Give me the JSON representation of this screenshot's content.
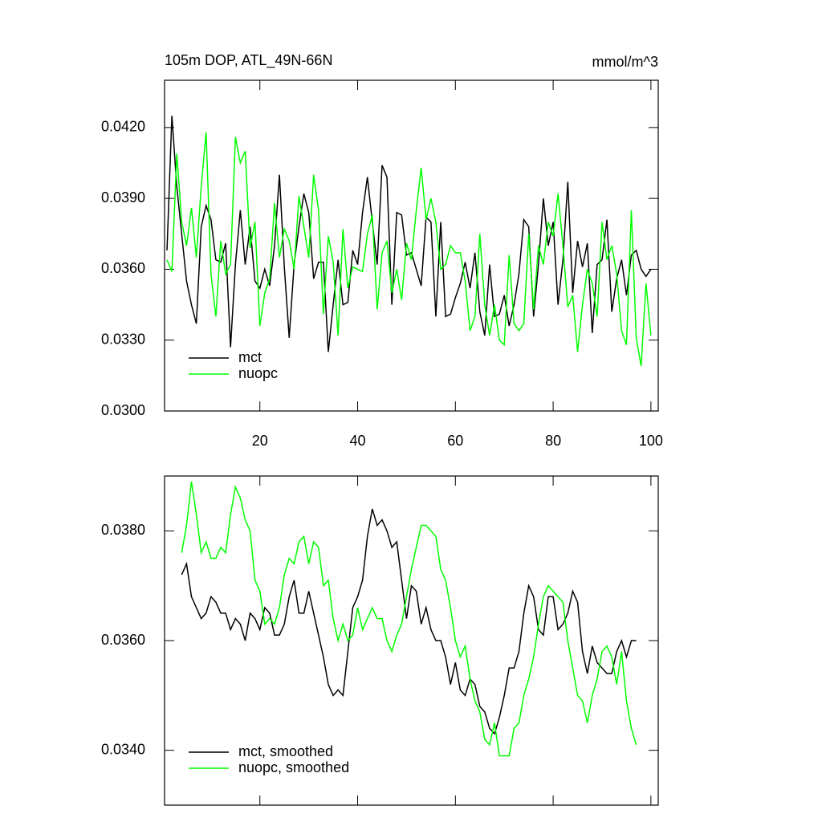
{
  "chart_data": [
    {
      "type": "line",
      "title": "105m DOP, ATL_49N-66N",
      "subtitle": "mmol/m^3",
      "x": [
        1,
        2,
        3,
        4,
        5,
        6,
        7,
        8,
        9,
        10,
        11,
        12,
        13,
        14,
        15,
        16,
        17,
        18,
        19,
        20,
        21,
        22,
        23,
        24,
        25,
        26,
        27,
        28,
        29,
        30,
        31,
        32,
        33,
        34,
        35,
        36,
        37,
        38,
        39,
        40,
        41,
        42,
        43,
        44,
        45,
        46,
        47,
        48,
        49,
        50,
        51,
        52,
        53,
        54,
        55,
        56,
        57,
        58,
        59,
        60,
        61,
        62,
        63,
        64,
        65,
        66,
        67,
        68,
        69,
        70,
        71,
        72,
        73,
        74,
        75,
        76,
        77,
        78,
        79,
        80,
        81,
        82,
        83,
        84,
        85,
        86,
        87,
        88,
        89,
        90,
        91,
        92,
        93,
        94,
        95,
        96,
        97,
        98,
        99,
        100
      ],
      "series": [
        {
          "name": "mct",
          "color": "#000000",
          "values": [
            0.0368,
            0.0425,
            0.0395,
            0.0375,
            0.0355,
            0.0345,
            0.0337,
            0.0378,
            0.0387,
            0.0381,
            0.0364,
            0.0363,
            0.0371,
            0.0327,
            0.0362,
            0.0385,
            0.0362,
            0.0378,
            0.0355,
            0.0352,
            0.036,
            0.0353,
            0.037,
            0.04,
            0.0361,
            0.0331,
            0.0362,
            0.0378,
            0.0392,
            0.0384,
            0.0356,
            0.0363,
            0.0363,
            0.0325,
            0.0345,
            0.0364,
            0.0345,
            0.0346,
            0.0368,
            0.0362,
            0.0384,
            0.0399,
            0.038,
            0.0362,
            0.0404,
            0.0399,
            0.0345,
            0.0384,
            0.0383,
            0.0366,
            0.0367,
            0.036,
            0.0353,
            0.0382,
            0.038,
            0.034,
            0.038,
            0.034,
            0.0341,
            0.0348,
            0.0354,
            0.0363,
            0.0352,
            0.0367,
            0.0342,
            0.0332,
            0.0362,
            0.034,
            0.0341,
            0.0349,
            0.0336,
            0.0345,
            0.0358,
            0.0381,
            0.0378,
            0.034,
            0.0362,
            0.039,
            0.037,
            0.038,
            0.0345,
            0.0364,
            0.0397,
            0.035,
            0.0372,
            0.0361,
            0.0371,
            0.0333,
            0.0362,
            0.0364,
            0.0381,
            0.0342,
            0.0356,
            0.0364,
            0.0349,
            0.0366,
            0.0368,
            0.036,
            0.0357,
            0.036
          ]
        },
        {
          "name": "nuopc",
          "color": "#00ff00",
          "values": [
            0.0364,
            0.0359,
            0.0409,
            0.038,
            0.037,
            0.0386,
            0.0365,
            0.0395,
            0.0418,
            0.0358,
            0.034,
            0.0372,
            0.0358,
            0.0362,
            0.0416,
            0.0405,
            0.041,
            0.0369,
            0.038,
            0.0336,
            0.035,
            0.0356,
            0.0388,
            0.0365,
            0.0377,
            0.0372,
            0.036,
            0.0391,
            0.0378,
            0.0365,
            0.04,
            0.0385,
            0.0341,
            0.0374,
            0.0363,
            0.0332,
            0.0377,
            0.0352,
            0.0361,
            0.036,
            0.0359,
            0.0375,
            0.0383,
            0.0343,
            0.0367,
            0.0372,
            0.035,
            0.036,
            0.0347,
            0.0371,
            0.0364,
            0.0385,
            0.0403,
            0.0381,
            0.039,
            0.038,
            0.036,
            0.0362,
            0.037,
            0.0367,
            0.0367,
            0.0355,
            0.0334,
            0.034,
            0.0375,
            0.0345,
            0.0332,
            0.0345,
            0.033,
            0.0328,
            0.0366,
            0.0337,
            0.0334,
            0.0337,
            0.0375,
            0.0343,
            0.037,
            0.0362,
            0.038,
            0.0374,
            0.0392,
            0.037,
            0.0344,
            0.0349,
            0.0325,
            0.0345,
            0.036,
            0.0354,
            0.034,
            0.038,
            0.0364,
            0.037,
            0.0358,
            0.0334,
            0.0328,
            0.0385,
            0.0331,
            0.0319,
            0.0354,
            0.0332
          ]
        }
      ],
      "xlim": [
        0.5,
        101.5
      ],
      "xticks": [
        20,
        40,
        60,
        80,
        100
      ],
      "ylim": [
        0.03,
        0.044
      ],
      "yticks": [
        {
          "value": 0.03,
          "label": "0.0300"
        },
        {
          "value": 0.033,
          "label": "0.0330"
        },
        {
          "value": 0.036,
          "label": "0.0360"
        },
        {
          "value": 0.039,
          "label": "0.0390"
        },
        {
          "value": 0.042,
          "label": "0.0420"
        }
      ],
      "legend": "lower left"
    },
    {
      "type": "line",
      "x": [
        4,
        5,
        6,
        7,
        8,
        9,
        10,
        11,
        12,
        13,
        14,
        15,
        16,
        17,
        18,
        19,
        20,
        21,
        22,
        23,
        24,
        25,
        26,
        27,
        28,
        29,
        30,
        31,
        32,
        33,
        34,
        35,
        36,
        37,
        38,
        39,
        40,
        41,
        42,
        43,
        44,
        45,
        46,
        47,
        48,
        49,
        50,
        51,
        52,
        53,
        54,
        55,
        56,
        57,
        58,
        59,
        60,
        61,
        62,
        63,
        64,
        65,
        66,
        67,
        68,
        69,
        70,
        71,
        72,
        73,
        74,
        75,
        76,
        77,
        78,
        79,
        80,
        81,
        82,
        83,
        84,
        85,
        86,
        87,
        88,
        89,
        90,
        91,
        92,
        93,
        94,
        95,
        96,
        97
      ],
      "series": [
        {
          "name": "mct, smoothed",
          "color": "#000000",
          "values": [
            0.0372,
            0.0374,
            0.0368,
            0.0366,
            0.0364,
            0.0365,
            0.0368,
            0.0367,
            0.0365,
            0.0365,
            0.0362,
            0.0364,
            0.0363,
            0.036,
            0.0365,
            0.0364,
            0.0362,
            0.0366,
            0.0365,
            0.0361,
            0.0361,
            0.0363,
            0.0368,
            0.0371,
            0.0365,
            0.0365,
            0.0369,
            0.0365,
            0.0361,
            0.0357,
            0.0352,
            0.035,
            0.0351,
            0.035,
            0.0358,
            0.0366,
            0.0368,
            0.0371,
            0.0379,
            0.0384,
            0.0381,
            0.0382,
            0.038,
            0.0377,
            0.0378,
            0.0371,
            0.0364,
            0.037,
            0.0369,
            0.0363,
            0.0366,
            0.0362,
            0.036,
            0.036,
            0.0357,
            0.0352,
            0.0356,
            0.0351,
            0.035,
            0.0353,
            0.0352,
            0.0348,
            0.0347,
            0.0344,
            0.0343,
            0.0346,
            0.035,
            0.0355,
            0.0355,
            0.0358,
            0.0365,
            0.037,
            0.0368,
            0.0362,
            0.0361,
            0.0368,
            0.0368,
            0.0362,
            0.0363,
            0.0365,
            0.0369,
            0.0367,
            0.0358,
            0.0354,
            0.0359,
            0.0356,
            0.0355,
            0.0354,
            0.0354,
            0.0358,
            0.036,
            0.0357,
            0.036,
            0.036
          ]
        },
        {
          "name": "nuopc, smoothed",
          "color": "#00ff00",
          "values": [
            0.0376,
            0.0381,
            0.0389,
            0.0383,
            0.0376,
            0.0378,
            0.0375,
            0.0375,
            0.0377,
            0.0376,
            0.0383,
            0.0388,
            0.0386,
            0.0382,
            0.038,
            0.0371,
            0.0369,
            0.0363,
            0.0364,
            0.0363,
            0.0366,
            0.0372,
            0.0375,
            0.0374,
            0.0378,
            0.0379,
            0.0374,
            0.0378,
            0.0377,
            0.037,
            0.0371,
            0.0364,
            0.036,
            0.0363,
            0.036,
            0.0361,
            0.0366,
            0.0362,
            0.0364,
            0.0366,
            0.0364,
            0.0364,
            0.036,
            0.0358,
            0.0361,
            0.0363,
            0.0368,
            0.0373,
            0.0377,
            0.0381,
            0.0381,
            0.038,
            0.0379,
            0.0373,
            0.0371,
            0.0366,
            0.036,
            0.0357,
            0.0359,
            0.0353,
            0.0349,
            0.0347,
            0.0342,
            0.0341,
            0.0345,
            0.0339,
            0.0339,
            0.0339,
            0.0344,
            0.0345,
            0.035,
            0.0353,
            0.0357,
            0.0363,
            0.0368,
            0.037,
            0.0369,
            0.0368,
            0.0367,
            0.036,
            0.0355,
            0.035,
            0.0349,
            0.0345,
            0.035,
            0.0353,
            0.0358,
            0.0359,
            0.0357,
            0.0352,
            0.0358,
            0.0349,
            0.0344,
            0.0341
          ]
        }
      ],
      "xlim": [
        0.5,
        101.5
      ],
      "ylim": [
        0.033,
        0.039
      ],
      "yticks": [
        {
          "value": 0.034,
          "label": "0.0340"
        },
        {
          "value": 0.036,
          "label": "0.0360"
        },
        {
          "value": 0.038,
          "label": "0.0380"
        }
      ],
      "legend": "lower left"
    }
  ]
}
